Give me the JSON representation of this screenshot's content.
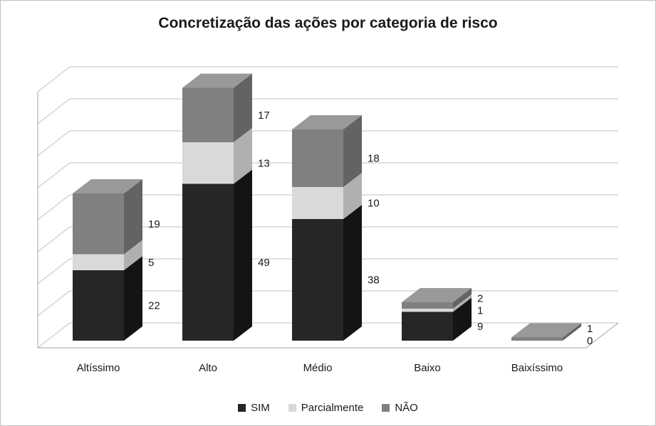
{
  "chart_data": {
    "type": "bar",
    "variant": "3d-stacked-column",
    "title": "Concretização das ações por categoria de risco",
    "categories": [
      "Altíssimo",
      "Alto",
      "Médio",
      "Baixo",
      "Baixíssimo"
    ],
    "series": [
      {
        "name": "SIM",
        "color": "#262626",
        "side": "#141414",
        "top": "#404040",
        "values": [
          22,
          49,
          38,
          9,
          0
        ]
      },
      {
        "name": "Parcialmente",
        "color": "#d9d9d9",
        "side": "#b0b0b0",
        "top": "#e9e9e9",
        "values": [
          5,
          13,
          10,
          1,
          0
        ]
      },
      {
        "name": "NÃO",
        "color": "#808080",
        "side": "#636363",
        "top": "#999999",
        "values": [
          19,
          17,
          18,
          2,
          1
        ]
      }
    ],
    "totals": [
      46,
      79,
      66,
      12,
      1
    ],
    "ylim": [
      0,
      80
    ],
    "grid_step": 10,
    "grid": true,
    "data_labels": true,
    "legend_position": "bottom"
  },
  "colors": {
    "gridline": "#bfbfbf",
    "axis": "#a6a6a6",
    "page_border": "#bfbfbf",
    "label_text": "#1a1a1a"
  }
}
